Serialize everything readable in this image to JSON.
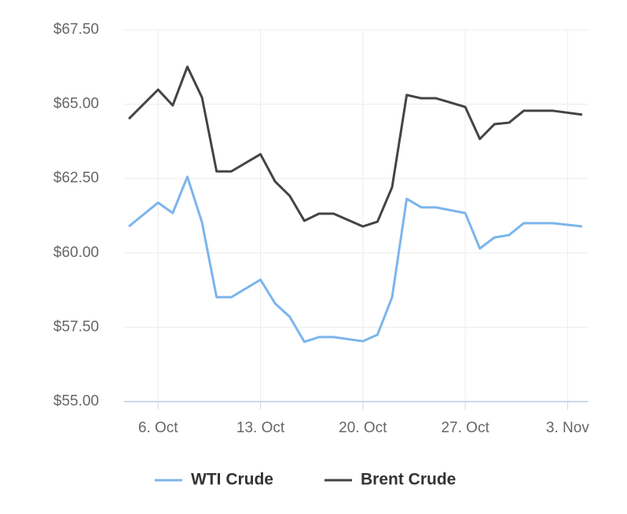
{
  "chart_data": {
    "type": "line",
    "x": [
      "4 Oct",
      "6 Oct",
      "7 Oct",
      "8 Oct",
      "9 Oct",
      "10 Oct",
      "11 Oct",
      "13 Oct",
      "14 Oct",
      "15 Oct",
      "16 Oct",
      "17 Oct",
      "18 Oct",
      "20 Oct",
      "21 Oct",
      "22 Oct",
      "23 Oct",
      "24 Oct",
      "25 Oct",
      "27 Oct",
      "28 Oct",
      "29 Oct",
      "30 Oct",
      "31 Oct",
      "2 Nov",
      "4 Nov"
    ],
    "series": [
      {
        "name": "WTI Crude",
        "color": "#7cb5ec",
        "values": [
          60.89,
          61.69,
          61.34,
          62.56,
          61.03,
          58.51,
          58.51,
          59.1,
          58.3,
          57.85,
          57.01,
          57.17,
          57.17,
          57.03,
          57.25,
          58.51,
          61.82,
          61.53,
          61.53,
          61.34,
          60.15,
          60.52,
          60.6,
          61.0,
          61.0,
          60.89
        ]
      },
      {
        "name": "Brent Crude",
        "color": "#434348",
        "values": [
          64.51,
          65.49,
          64.96,
          66.26,
          65.23,
          62.74,
          62.74,
          63.32,
          62.4,
          61.92,
          61.08,
          61.32,
          61.32,
          60.89,
          61.05,
          62.21,
          65.31,
          65.2,
          65.2,
          64.91,
          63.83,
          64.33,
          64.38,
          64.78,
          64.78,
          64.65
        ]
      }
    ],
    "xlim": [
      "4 Oct",
      "4 Nov"
    ],
    "xticks": [
      {
        "value": "6 Oct",
        "label": "6. Oct"
      },
      {
        "value": "13 Oct",
        "label": "13. Oct"
      },
      {
        "value": "20 Oct",
        "label": "20. Oct"
      },
      {
        "value": "27 Oct",
        "label": "27. Oct"
      },
      {
        "value": "3 Nov",
        "label": "3. Nov"
      }
    ],
    "ylim": [
      55,
      67.5
    ],
    "yticks": [
      {
        "value": 55,
        "label": "$55.00"
      },
      {
        "value": 57.5,
        "label": "$57.50"
      },
      {
        "value": 60,
        "label": "$60.00"
      },
      {
        "value": 62.5,
        "label": "$62.50"
      },
      {
        "value": 65,
        "label": "$65.00"
      },
      {
        "value": 67.5,
        "label": "$67.50"
      }
    ],
    "grid": true,
    "legend": "bottom"
  }
}
